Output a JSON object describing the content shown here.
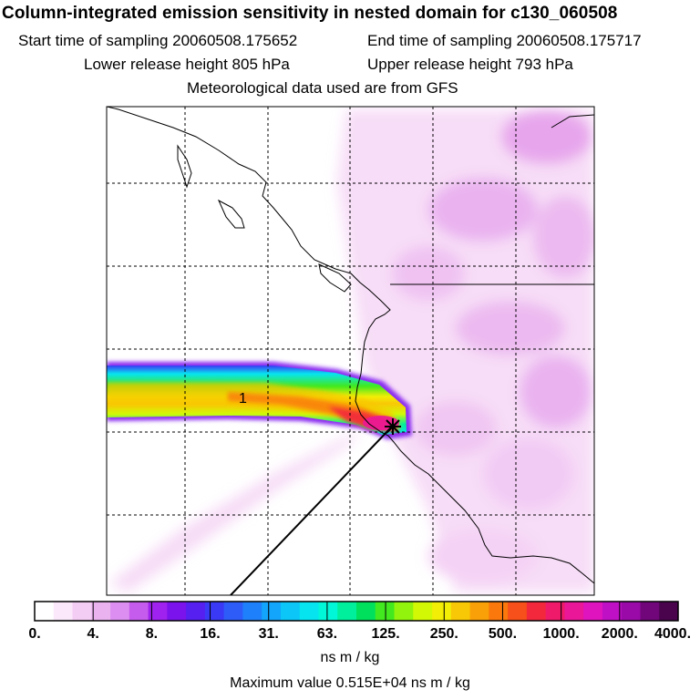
{
  "header": {
    "title": "Column-integrated emission sensitivity in nested domain for c130_060508",
    "start_label": "Start time of sampling 20060508.175652",
    "end_label": "End time of sampling 20060508.175717",
    "lower_label": "Lower release height  805 hPa",
    "upper_label": "Upper release height  793 hPa",
    "met_label": "Meteorological data used are from GFS"
  },
  "map": {
    "plume_label": "1",
    "receptor_marker": "star-icon",
    "gridlines": "dashed"
  },
  "colorbar": {
    "labels": [
      "0.",
      "4.",
      "8.",
      "16.",
      "31.",
      "63.",
      "125.",
      "250.",
      "500.",
      "1000.",
      "2000.",
      "4000."
    ],
    "colors": [
      "#ffffff",
      "#fbe8fb",
      "#f4cdf4",
      "#eab3f0",
      "#dc8ff0",
      "#c65cee",
      "#a022ee",
      "#7a13ec",
      "#5520f0",
      "#3a3af6",
      "#2d5cf9",
      "#1f80fb",
      "#13a4fb",
      "#0bc6f7",
      "#06e4f0",
      "#00f7d8",
      "#00ef9c",
      "#00e05c",
      "#42e91e",
      "#92f30c",
      "#d2f806",
      "#f2ee06",
      "#f8c806",
      "#f9a008",
      "#fa780c",
      "#f7501a",
      "#f3283c",
      "#ef1a6a",
      "#ea1898",
      "#df14bf",
      "#c010c6",
      "#9a0aa8",
      "#70067a",
      "#4a044e"
    ],
    "units": "ns m / kg"
  },
  "footer": {
    "max_value": "Maximum value  0.515E+04 ns m / kg"
  }
}
